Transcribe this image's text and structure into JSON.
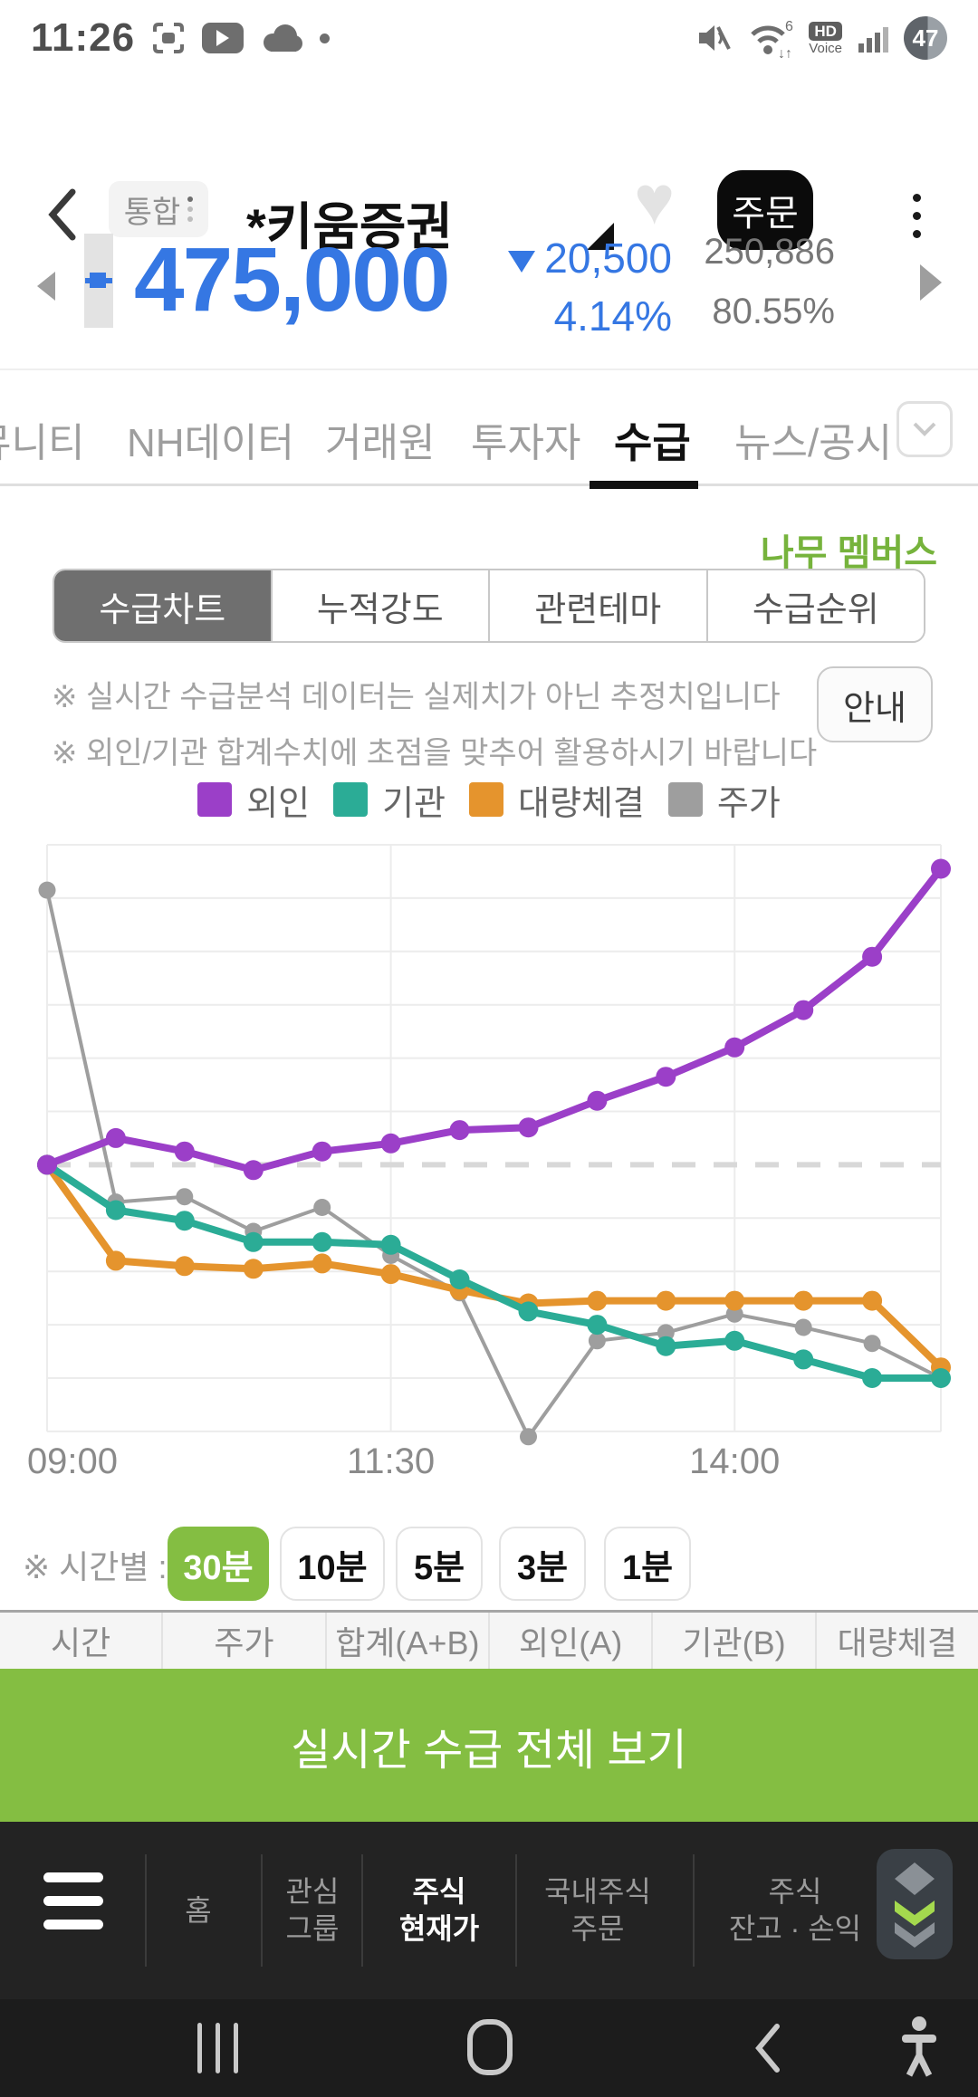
{
  "status_bar": {
    "time": "11:26",
    "battery_percent": "47",
    "hd_label": "HD",
    "voice_label": "Voice",
    "wifi_gen": "6"
  },
  "header": {
    "category_badge": "통합",
    "title": "*키움증권",
    "order_button": "주문"
  },
  "price_section": {
    "price": "475,000",
    "change_value": "20,500",
    "change_percent": "4.14%",
    "volume": "250,886",
    "turnover_percent": "80.55%"
  },
  "tab_bar": {
    "tabs": [
      {
        "label": "뮤니티",
        "active": false
      },
      {
        "label": "NH데이터",
        "active": false
      },
      {
        "label": "거래원",
        "active": false
      },
      {
        "label": "투자자",
        "active": false
      },
      {
        "label": "수급",
        "active": true
      },
      {
        "label": "뉴스/공시",
        "active": false
      }
    ]
  },
  "membership_label": "나무 멤버스",
  "sub_tabs": [
    {
      "label": "수급차트",
      "active": true
    },
    {
      "label": "누적강도",
      "active": false
    },
    {
      "label": "관련테마",
      "active": false
    },
    {
      "label": "수급순위",
      "active": false
    }
  ],
  "notice_lines": [
    "※ 실시간 수급분석 데이터는 실제치가 아닌 추정치입니다",
    "※ 외인/기관 합계수치에 초점을 맞추어 활용하시기 바랍니다"
  ],
  "guide_button_label": "안내",
  "chart_data": {
    "type": "line",
    "x": [
      "09:00",
      "09:30",
      "10:00",
      "10:30",
      "11:00",
      "11:30",
      "12:00",
      "12:30",
      "13:00",
      "13:30",
      "14:00",
      "14:30",
      "15:00",
      "15:30"
    ],
    "tick_indices": [
      0,
      5,
      10
    ],
    "tick_labels": [
      "09:00",
      "11:30",
      "14:00"
    ],
    "ylim": [
      -5,
      6
    ],
    "baseline": 0,
    "baseline_style": "dashed",
    "grid": "on",
    "legend_position": "top",
    "series": [
      {
        "name": "외인",
        "color": "#9B3FC8",
        "values": [
          0,
          0.5,
          0.25,
          -0.1,
          0.25,
          0.4,
          0.65,
          0.7,
          1.2,
          1.65,
          2.2,
          2.9,
          3.9,
          5.55
        ]
      },
      {
        "name": "기관",
        "color": "#2BAC96",
        "values": [
          0,
          -0.85,
          -1.05,
          -1.45,
          -1.45,
          -1.5,
          -2.15,
          -2.75,
          -3.0,
          -3.4,
          -3.3,
          -3.65,
          -4.0,
          -4.0
        ]
      },
      {
        "name": "대량체결",
        "color": "#E5942D",
        "values": [
          0,
          -1.8,
          -1.9,
          -1.95,
          -1.85,
          -2.05,
          -2.35,
          -2.6,
          -2.55,
          -2.55,
          -2.55,
          -2.55,
          -2.55,
          -3.8
        ]
      },
      {
        "name": "주가",
        "color": "#9E9E9E",
        "values": [
          5.15,
          -0.7,
          -0.6,
          -1.25,
          -0.8,
          -1.7,
          -2.4,
          -5.1,
          -3.3,
          -3.15,
          -2.8,
          -3.05,
          -3.35,
          -4.0
        ]
      }
    ]
  },
  "interval_selector": {
    "label": "※ 시간별 :",
    "options": [
      {
        "label": "30분",
        "active": true
      },
      {
        "label": "10분",
        "active": false
      },
      {
        "label": "5분",
        "active": false
      },
      {
        "label": "3분",
        "active": false
      },
      {
        "label": "1분",
        "active": false
      }
    ]
  },
  "table": {
    "headers": [
      "시간",
      "주가",
      "합계(A+B)",
      "외인(A)",
      "기관(B)",
      "대량체결"
    ]
  },
  "cta_button_label": "실시간 수급 전체 보기",
  "bottom_nav": {
    "items": [
      {
        "line1": "홈",
        "line2": "",
        "active": false
      },
      {
        "line1": "관심",
        "line2": "그룹",
        "active": false
      },
      {
        "line1": "주식",
        "line2": "현재가",
        "active": true
      },
      {
        "line1": "국내주식",
        "line2": "주문",
        "active": false
      },
      {
        "line1": "주식",
        "line2": "잔고 · 손익",
        "active": false
      }
    ]
  },
  "colors": {
    "accent_blue": "#3577E3",
    "brand_green": "#84BE42",
    "selected_gray": "#6F6F6F"
  }
}
